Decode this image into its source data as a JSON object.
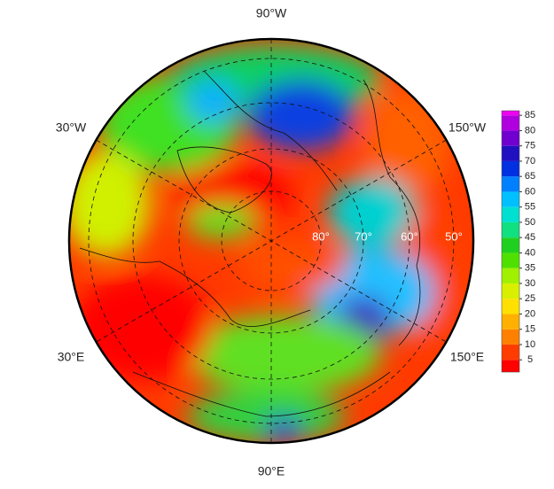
{
  "map": {
    "meridian_labels": [
      "90°W",
      "30°W",
      "150°W",
      "30°E",
      "150°E",
      "90°E"
    ],
    "latitude_labels": [
      "80°",
      "70°",
      "60°",
      "50°"
    ],
    "colorbar": {
      "lim": [
        1,
        86.5
      ],
      "ticks": [
        5,
        10,
        15,
        20,
        25,
        30,
        35,
        40,
        45,
        50,
        55,
        60,
        65,
        70,
        75,
        80,
        85
      ],
      "colors": [
        "#ff0000",
        "#ff3c00",
        "#ff8000",
        "#ffb000",
        "#ffe000",
        "#d8f000",
        "#a0f000",
        "#50e000",
        "#20d020",
        "#10e080",
        "#00e0d0",
        "#00c0ff",
        "#0080ff",
        "#0030e0",
        "#2010c0",
        "#7000d0",
        "#b000e0",
        "#f000f0"
      ]
    }
  }
}
